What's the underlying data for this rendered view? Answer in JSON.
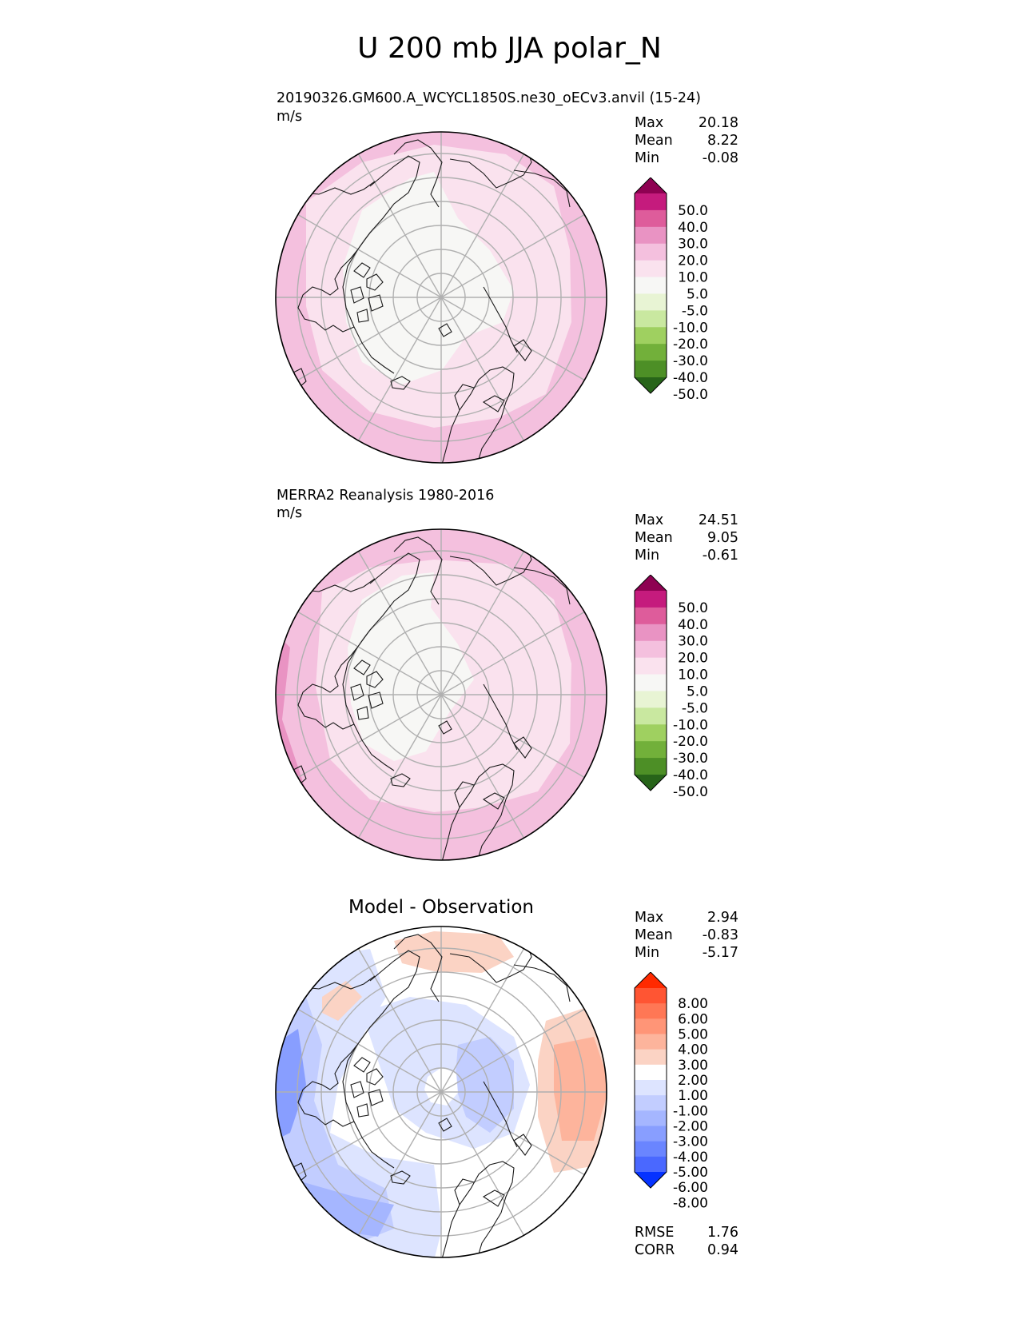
{
  "title": "U 200 mb JJA polar_N",
  "colors": {
    "land_outline": "#1a1a1a",
    "grid": "#b0b0b0",
    "pink_scale": [
      "#276419",
      "#4d9221",
      "#7fbc41",
      "#b8e186",
      "#e6f5d0",
      "#f7f7f7",
      "#fde0ef",
      "#f1b6da",
      "#de77ae",
      "#c51b7d",
      "#8e0152"
    ],
    "diff_scale": [
      "#0532ff",
      "#2c5bff",
      "#5a7dff",
      "#7d98ff",
      "#a3b5ff",
      "#c4d0ff",
      "#dee6ff",
      "#ffffff",
      "#fee0d2",
      "#fcbba1",
      "#fc9272",
      "#fb6a4a",
      "#ef3b2c",
      "#ff2a00"
    ]
  },
  "chart_data": [
    {
      "type": "heatmap",
      "name": "test",
      "title": "20190326.GM600.A_WCYCL1850S.ne30_oECv3.anvil (15-24)",
      "units": "m/s",
      "stats": {
        "max_label": "Max",
        "max": "20.18",
        "mean_label": "Mean",
        "mean": "8.22",
        "min_label": "Min",
        "min": "-0.08"
      },
      "colorbar_levels": [
        "50.0",
        "40.0",
        "30.0",
        "20.0",
        "10.0",
        "5.0",
        "-5.0",
        "-10.0",
        "-20.0",
        "-30.0",
        "-40.0",
        "-50.0"
      ],
      "colorbar_colors": [
        "#8e0152",
        "#c51b7d",
        "#de5c9b",
        "#e993c3",
        "#f4c0de",
        "#fae2ee",
        "#f7f7f5",
        "#e8f4d4",
        "#c9e8a0",
        "#9fd060",
        "#72b03a",
        "#4d8f26",
        "#276419"
      ]
    },
    {
      "type": "heatmap",
      "name": "reference",
      "title": "MERRA2 Reanalysis 1980-2016",
      "units": "m/s",
      "stats": {
        "max_label": "Max",
        "max": "24.51",
        "mean_label": "Mean",
        "mean": "9.05",
        "min_label": "Min",
        "min": "-0.61"
      },
      "colorbar_levels": [
        "50.0",
        "40.0",
        "30.0",
        "20.0",
        "10.0",
        "5.0",
        "-5.0",
        "-10.0",
        "-20.0",
        "-30.0",
        "-40.0",
        "-50.0"
      ],
      "colorbar_colors": [
        "#8e0152",
        "#c51b7d",
        "#de5c9b",
        "#e993c3",
        "#f4c0de",
        "#fae2ee",
        "#f7f7f5",
        "#e8f4d4",
        "#c9e8a0",
        "#9fd060",
        "#72b03a",
        "#4d8f26",
        "#276419"
      ]
    },
    {
      "type": "heatmap",
      "name": "difference",
      "title": "Model - Observation",
      "units": "",
      "stats": {
        "max_label": "Max",
        "max": "2.94",
        "mean_label": "Mean",
        "mean": "-0.83",
        "min_label": "Min",
        "min": "-5.17"
      },
      "metrics": {
        "rmse_label": "RMSE",
        "rmse": "1.76",
        "corr_label": "CORR",
        "corr": "0.94"
      },
      "colorbar_levels": [
        "8.00",
        "6.00",
        "5.00",
        "4.00",
        "3.00",
        "2.00",
        "1.00",
        "-1.00",
        "-2.00",
        "-3.00",
        "-4.00",
        "-5.00",
        "-6.00",
        "-8.00"
      ],
      "colorbar_colors": [
        "#ff2a00",
        "#ff5533",
        "#ff7755",
        "#ff9577",
        "#fdb49c",
        "#fbd3c4",
        "#ffffff",
        "#dde4ff",
        "#c2cdff",
        "#a5b6ff",
        "#889eff",
        "#6a85ff",
        "#4a68ff",
        "#0532ff"
      ]
    }
  ]
}
